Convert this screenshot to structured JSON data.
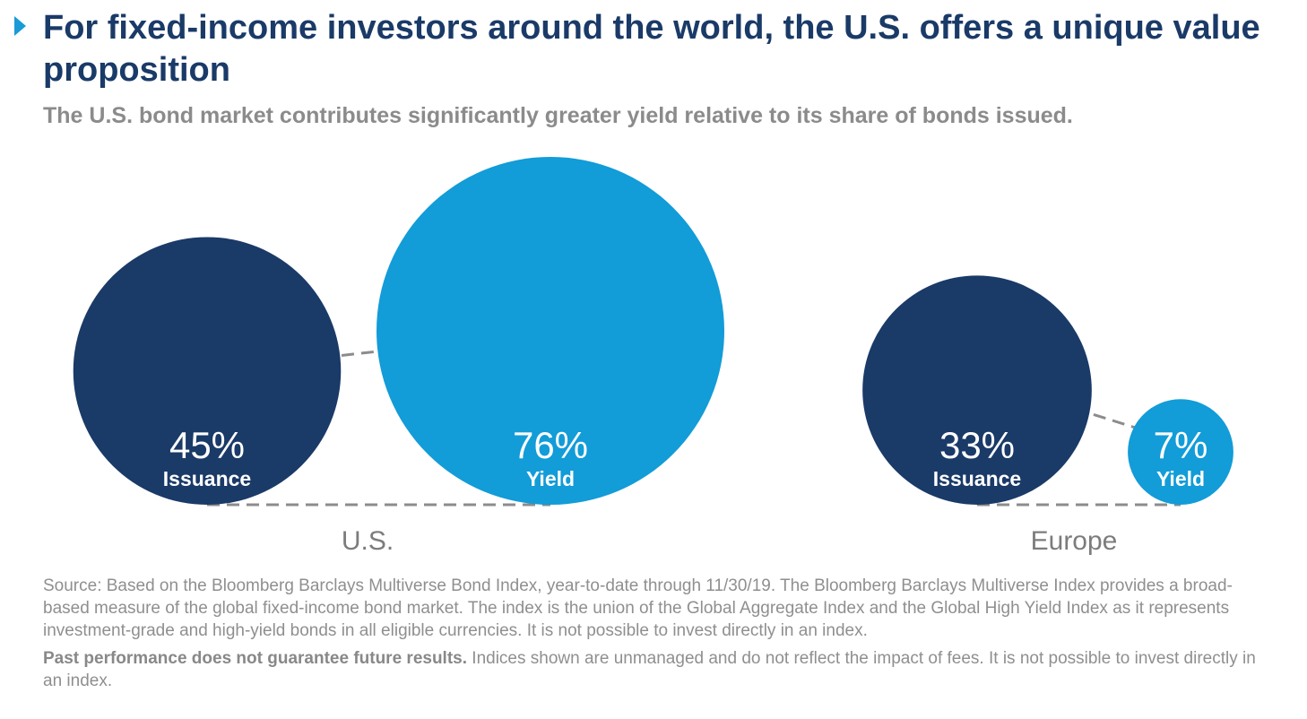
{
  "page": {
    "title": "For fixed-income investors around the world, the U.S. offers a unique value proposition",
    "subtitle": "The U.S. bond market contributes significantly greater yield relative to its share of bonds issued.",
    "source": {
      "note": "Source: Based on the Bloomberg Barclays Multiverse Bond Index, year-to-date through 11/30/19. The Bloomberg Barclays Multiverse Index provides a broad-based measure of the global fixed-income bond market. The index is the union of the Global Aggregate Index and the Global High Yield Index as it represents investment-grade and high-yield bonds in all eligible currencies. It is not possible to invest directly in an index.",
      "disclaimer_bold": "Past performance does not guarantee future results.",
      "disclaimer_rest": " Indices shown are unmanaged and do not reflect the impact of fees. It is not possible to invest directly in an index."
    }
  },
  "colors": {
    "issuance": "#1a3a68",
    "yield": "#129cd8",
    "title": "#1a3a68",
    "marker": "#1a9ad6",
    "muted": "#8b8b8b",
    "connector": "#8c8c8c"
  },
  "chart_data": {
    "type": "bubble",
    "title": "For fixed-income investors around the world, the U.S. offers a unique value proposition",
    "subtitle": "The U.S. bond market contributes significantly greater yield relative to its share of bonds issued.",
    "categories": [
      "U.S.",
      "Europe"
    ],
    "series": [
      {
        "name": "Issuance",
        "values": [
          45,
          33
        ]
      },
      {
        "name": "Yield",
        "values": [
          76,
          7
        ]
      }
    ],
    "value_labels": {
      "Issuance": [
        "45%",
        "33%"
      ],
      "Yield": [
        "76%",
        "7%"
      ]
    },
    "units": "%"
  }
}
